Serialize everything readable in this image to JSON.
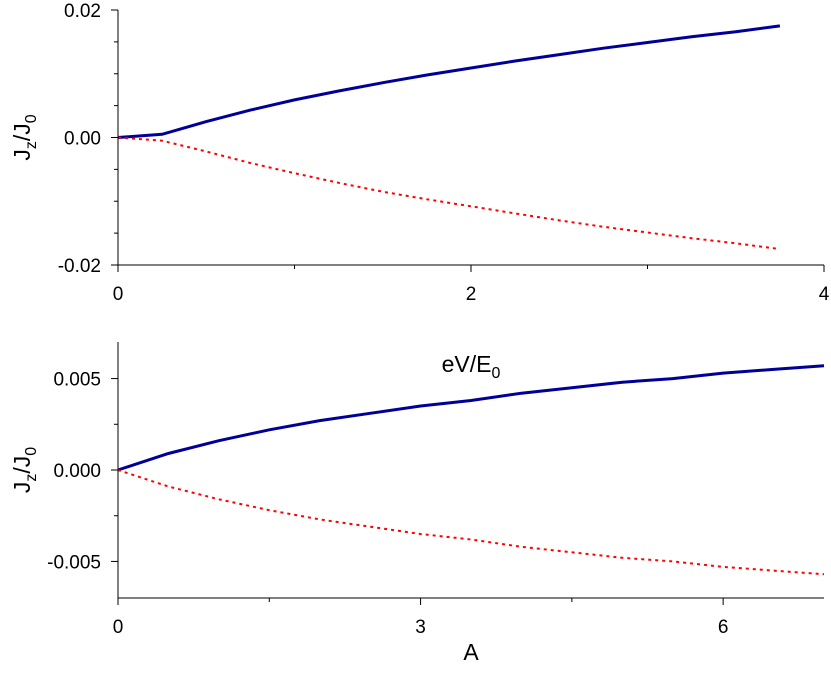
{
  "colors": {
    "series_solid": "#000099",
    "series_dotted": "#ff0000",
    "axis": "#000000",
    "background": "#ffffff"
  },
  "chart_data": [
    {
      "type": "line",
      "title": "",
      "xlabel": "eV/E",
      "xlabel_sub": "0",
      "ylabel_parts": [
        "J",
        "z",
        "/J",
        "0"
      ],
      "xlim": [
        0,
        4
      ],
      "ylim": [
        -0.02,
        0.02
      ],
      "x_ticks": [
        0,
        2,
        4
      ],
      "x_tick_labels": [
        "0",
        "2",
        "4"
      ],
      "x_minor_ticks": [
        1,
        3
      ],
      "y_ticks": [
        -0.02,
        0,
        0.02
      ],
      "y_tick_labels": [
        "-0.02",
        "0.00",
        "0.02"
      ],
      "y_minor_ticks": [
        -0.015,
        -0.01,
        -0.005,
        0.005,
        0.01,
        0.015
      ],
      "grid": false,
      "legend": "none",
      "series": [
        {
          "style": "solid",
          "color_key": "series_solid",
          "x": [
            0,
            0.25,
            0.5,
            0.75,
            1.0,
            1.25,
            1.5,
            1.75,
            2.0,
            2.25,
            2.5,
            2.75,
            3.0,
            3.25,
            3.5,
            3.75
          ],
          "y": [
            0,
            0.0005,
            0.0025,
            0.0043,
            0.0059,
            0.0073,
            0.0086,
            0.0098,
            0.0109,
            0.012,
            0.013,
            0.014,
            0.0149,
            0.0158,
            0.0166,
            0.0175
          ]
        },
        {
          "style": "dotted",
          "color_key": "series_dotted",
          "x": [
            0,
            0.25,
            0.5,
            0.75,
            1.0,
            1.25,
            1.5,
            1.75,
            2.0,
            2.25,
            2.5,
            2.75,
            3.0,
            3.25,
            3.5,
            3.75
          ],
          "y": [
            0,
            -0.0005,
            -0.0022,
            -0.004,
            -0.0056,
            -0.0071,
            -0.0085,
            -0.0097,
            -0.0108,
            -0.0119,
            -0.013,
            -0.014,
            -0.0149,
            -0.0158,
            -0.0166,
            -0.0175
          ]
        }
      ]
    },
    {
      "type": "line",
      "title": "",
      "xlabel": "A",
      "xlabel_sub": "",
      "ylabel_parts": [
        "J",
        "z",
        "/J",
        "0"
      ],
      "xlim": [
        0,
        7
      ],
      "ylim": [
        -0.007,
        0.007
      ],
      "x_ticks": [
        0,
        3,
        6
      ],
      "x_tick_labels": [
        "0",
        "3",
        "6"
      ],
      "x_minor_ticks": [
        1.5,
        4.5
      ],
      "y_ticks": [
        -0.005,
        0,
        0.005
      ],
      "y_tick_labels": [
        "-0.005",
        "0.000",
        "0.005"
      ],
      "y_minor_ticks": [
        -0.0025,
        0.0025
      ],
      "grid": false,
      "legend": "none",
      "series": [
        {
          "style": "solid",
          "color_key": "series_solid",
          "x": [
            0,
            0.5,
            1.0,
            1.5,
            2.0,
            2.5,
            3.0,
            3.5,
            4.0,
            4.5,
            5.0,
            5.5,
            6.0,
            6.5,
            7.0
          ],
          "y": [
            0,
            0.0009,
            0.0016,
            0.0022,
            0.0027,
            0.0031,
            0.0035,
            0.0038,
            0.0042,
            0.0045,
            0.0048,
            0.005,
            0.0053,
            0.0055,
            0.0057
          ]
        },
        {
          "style": "dotted",
          "color_key": "series_dotted",
          "x": [
            0,
            0.5,
            1.0,
            1.5,
            2.0,
            2.5,
            3.0,
            3.5,
            4.0,
            4.5,
            5.0,
            5.5,
            6.0,
            6.5,
            7.0
          ],
          "y": [
            0,
            -0.0009,
            -0.0016,
            -0.0022,
            -0.0027,
            -0.0031,
            -0.0035,
            -0.0038,
            -0.0042,
            -0.0045,
            -0.0048,
            -0.005,
            -0.0053,
            -0.0055,
            -0.0057
          ]
        }
      ]
    }
  ]
}
